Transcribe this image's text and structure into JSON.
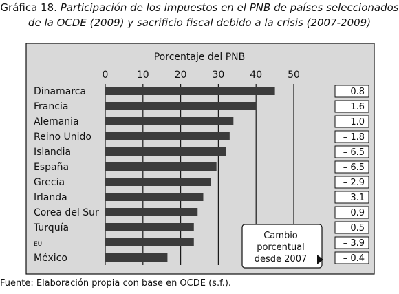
{
  "title_lead": "Gráfica 18.",
  "title_rest_line1": "Participación de los impuestos en el PNB de países seleccionados",
  "title_rest_line2": "de la OCDE (2009) y sacrificio fiscal debido a la crisis (2007-2009)",
  "source": "Fuente: Elaboración propia con base en OCDE (s.f.).",
  "chart_data": {
    "type": "bar",
    "orientation": "horizontal",
    "title": "Porcentaje del PNB",
    "xlim": [
      0,
      50
    ],
    "xticks": [
      "0",
      "10",
      "20",
      "30",
      "40",
      "50"
    ],
    "grid": true,
    "categories": [
      "Dinamarca",
      "Francia",
      "Alemania",
      "Reino Unido",
      "Islandia",
      "España",
      "Grecia",
      "Irlanda",
      "Corea del Sur",
      "Turquía",
      "EU",
      "México"
    ],
    "values": [
      45.0,
      40.0,
      34.0,
      33.0,
      32.0,
      29.5,
      28.0,
      26.0,
      24.5,
      23.5,
      23.5,
      16.5
    ],
    "change_labels": [
      "– 0.8",
      "–1.6",
      "1.0",
      "– 1.8",
      "– 6.5",
      "– 6.5",
      "– 2.9",
      "– 3.1",
      "– 0.9",
      "0.5",
      "– 3.9",
      "– 0.4"
    ],
    "change_note_line1": "Cambio",
    "change_note_line2": "porcentual",
    "change_note_line3": "desde 2007",
    "colors": {
      "bar": "#3c3c3c",
      "panel": "#d9d9d9",
      "grid": "#1a1a1a"
    }
  }
}
